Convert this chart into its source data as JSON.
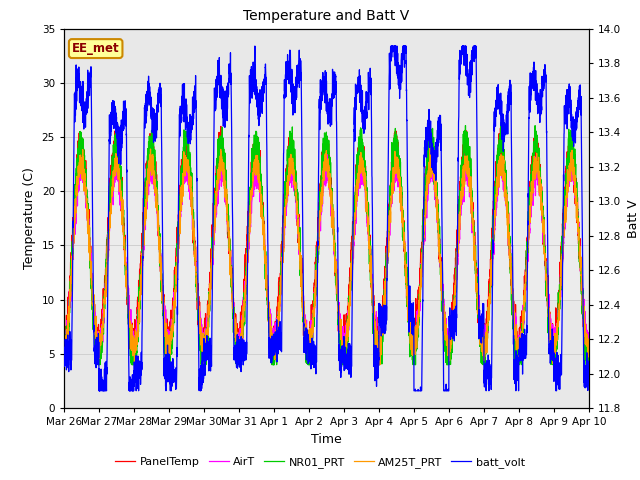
{
  "title": "Temperature and Batt V",
  "xlabel": "Time",
  "ylabel_left": "Temperature (C)",
  "ylabel_right": "Batt V",
  "annotation_text": "EE_met",
  "ylim_left": [
    0,
    35
  ],
  "ylim_right": [
    11.8,
    14.0
  ],
  "x_tick_labels": [
    "Mar 26",
    "Mar 27",
    "Mar 28",
    "Mar 29",
    "Mar 30",
    "Mar 31",
    "Apr 1",
    "Apr 2",
    "Apr 3",
    "Apr 4",
    "Apr 5",
    "Apr 6",
    "Apr 7",
    "Apr 8",
    "Apr 9",
    "Apr 10"
  ],
  "yticks_left": [
    0,
    5,
    10,
    15,
    20,
    25,
    30,
    35
  ],
  "yticks_right": [
    11.8,
    12.0,
    12.2,
    12.4,
    12.6,
    12.8,
    13.0,
    13.2,
    13.4,
    13.6,
    13.8,
    14.0
  ],
  "legend_labels": [
    "PanelTemp",
    "AirT",
    "NR01_PRT",
    "AM25T_PRT",
    "batt_volt"
  ],
  "legend_colors": [
    "#ff0000",
    "#ff00ff",
    "#00cc00",
    "#ff9900",
    "#0000ff"
  ],
  "grid_color": "#d0d0d0",
  "num_days": 15,
  "points_per_day": 288
}
